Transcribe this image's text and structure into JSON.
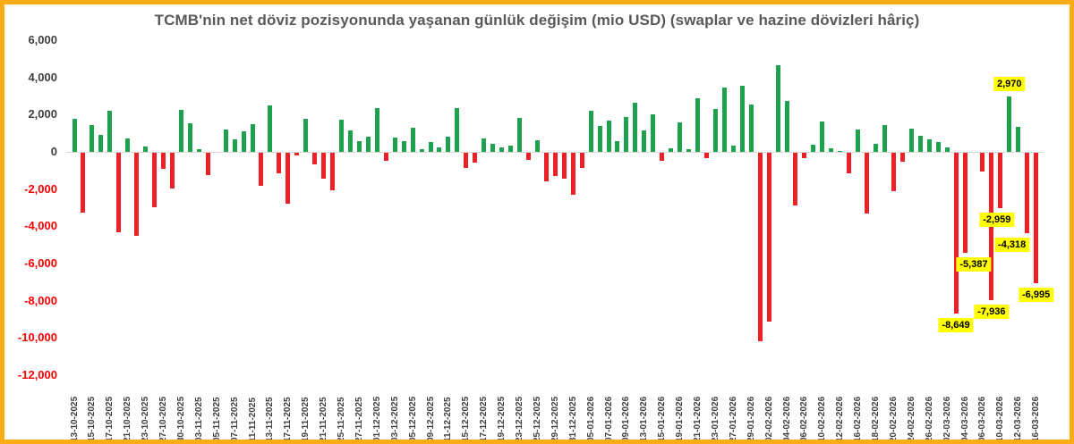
{
  "window": {
    "border_color": "#FBAD18",
    "background": "#FFFFFF"
  },
  "chart_data": {
    "type": "bar",
    "title": "TCMB'nin net döviz pozisyonunda yaşanan günlük değişim (mio USD) (swaplar ve hazine dövizleri hâriç)",
    "title_color": "#595959",
    "ylim": [
      -12000,
      6000
    ],
    "grid": false,
    "axis_line_color": "#D6D6D6",
    "bar_colors": {
      "positive": "#1EA24D",
      "negative": "#EC2127"
    },
    "y_ticks": [
      {
        "label": "6,000",
        "value": 6000,
        "color": "#404040"
      },
      {
        "label": "4,000",
        "value": 4000,
        "color": "#404040"
      },
      {
        "label": "2,000",
        "value": 2000,
        "color": "#404040"
      },
      {
        "label": "0",
        "value": 0,
        "color": "#404040"
      },
      {
        "label": "-2,000",
        "value": -2000,
        "color": "#FF0000"
      },
      {
        "label": "-4,000",
        "value": -4000,
        "color": "#FF0000"
      },
      {
        "label": "-6,000",
        "value": -6000,
        "color": "#FF0000"
      },
      {
        "label": "-8,000",
        "value": -8000,
        "color": "#FF0000"
      },
      {
        "label": "-10,000",
        "value": -10000,
        "color": "#FF0000"
      },
      {
        "label": "-12,000",
        "value": -12000,
        "color": "#FF0000"
      }
    ],
    "x_tick_labels": [
      "13-10-2025",
      "15-10-2025",
      "17-10-2025",
      "21-10-2025",
      "23-10-2025",
      "27-10-2025",
      "30-10-2025",
      "03-11-2025",
      "05-11-2025",
      "07-11-2025",
      "11-11-2025",
      "13-11-2025",
      "17-11-2025",
      "19-11-2025",
      "21-11-2025",
      "25-11-2025",
      "27-11-2025",
      "01-12-2025",
      "03-12-2025",
      "05-12-2025",
      "09-12-2025",
      "11-12-2025",
      "15-12-2025",
      "17-12-2025",
      "19-12-2025",
      "23-12-2025",
      "25-12-2025",
      "29-12-2025",
      "31-12-2025",
      "05-01-2026",
      "07-01-2026",
      "09-01-2026",
      "13-01-2026",
      "15-01-2026",
      "19-01-2026",
      "21-01-2026",
      "23-01-2026",
      "27-01-2026",
      "29-01-2026",
      "02-02-2026",
      "04-02-2026",
      "06-02-2026",
      "10-02-2026",
      "12-02-2026",
      "16-02-2026",
      "18-02-2026",
      "20-02-2026",
      "24-02-2026",
      "26-02-2026",
      "02-03-2026",
      "04-03-2026",
      "06-03-2026",
      "10-03-2026",
      "12-03-2026",
      "16-03-2026"
    ],
    "x_label_every_n_bars": 2,
    "values": [
      1770,
      -3210,
      1440,
      910,
      2200,
      -4270,
      720,
      -4460,
      290,
      -2930,
      -870,
      -1920,
      2250,
      1530,
      150,
      -1200,
      0,
      1200,
      670,
      1100,
      1490,
      -1780,
      2480,
      -1100,
      -2730,
      -150,
      1780,
      -620,
      -1390,
      -2010,
      1730,
      1150,
      580,
      820,
      2350,
      -430,
      770,
      570,
      1290,
      140,
      520,
      240,
      820,
      2360,
      -800,
      -530,
      720,
      430,
      240,
      340,
      1830,
      -400,
      640,
      -1520,
      -1250,
      -1390,
      -2260,
      -830,
      2200,
      1400,
      1680,
      570,
      1870,
      2640,
      1150,
      2010,
      -430,
      200,
      1580,
      150,
      2880,
      -300,
      2300,
      3440,
      350,
      3550,
      2550,
      -10150,
      -9070,
      4650,
      2730,
      -2830,
      -300,
      400,
      1630,
      200,
      60,
      -1100,
      1200,
      -3260,
      450,
      1450,
      -2060,
      -480,
      1250,
      880,
      670,
      520,
      250,
      -8649,
      -5387,
      0,
      -1000,
      -7936,
      -2959,
      2970,
      1340,
      -4318,
      -6995
    ],
    "annotations": [
      {
        "bar_index": 99,
        "text": "-8,649",
        "position": "below",
        "dx": 0
      },
      {
        "bar_index": 100,
        "text": "-5,387",
        "position": "below",
        "dx": 10
      },
      {
        "bar_index": 103,
        "text": "-7,936",
        "position": "below",
        "dx": 0
      },
      {
        "bar_index": 104,
        "text": "-2,959",
        "position": "below",
        "dx": -4
      },
      {
        "bar_index": 105,
        "text": "2,970",
        "position": "above",
        "dx": 0
      },
      {
        "bar_index": 107,
        "text": "-4,318",
        "position": "below",
        "dx": -17
      },
      {
        "bar_index": 108,
        "text": "-6,995",
        "position": "below",
        "dx": 0
      }
    ],
    "annotation_style": {
      "bg": "#FFFF00",
      "text_color": "#000000"
    }
  }
}
